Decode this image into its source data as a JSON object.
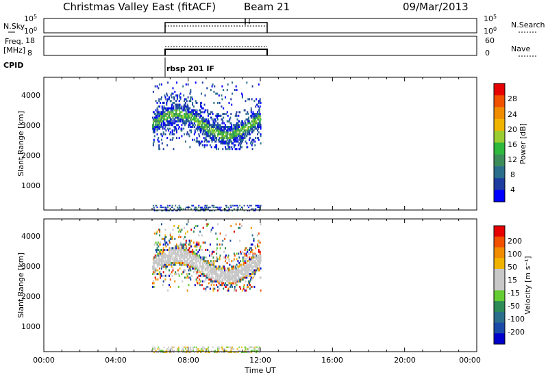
{
  "header": {
    "station": "Christmas Valley East (fitACF)",
    "beam": "Beam 21",
    "date": "09/Mar/2013"
  },
  "top_panels": {
    "nsky": {
      "label": "N.Sky",
      "ticks": [
        "10^5",
        "10^0"
      ],
      "right_ticks": [
        "10^5",
        "10^0"
      ],
      "right_label": "N.Search"
    },
    "freq": {
      "label_lines": [
        "Freq.",
        "[MHz]"
      ],
      "ticks": [
        "18",
        "8"
      ],
      "right_ticks": [
        "60",
        "0"
      ],
      "right_label": "Nave"
    },
    "cpid": {
      "label": "CPID",
      "value": "rbsp 201 IF"
    }
  },
  "power_panel": {
    "ylabel": "Slant Range [km]",
    "yticks": [
      "4000",
      "3000",
      "2000",
      "1000"
    ],
    "colorbar": {
      "label": "Power [dB]",
      "ticks": [
        "28",
        "24",
        "20",
        "16",
        "12",
        "8",
        "4"
      ]
    }
  },
  "velocity_panel": {
    "ylabel": "Slant Range [km]",
    "yticks": [
      "4000",
      "3000",
      "2000",
      "1000"
    ],
    "colorbar": {
      "label": "Velocity [m s⁻¹]",
      "ticks": [
        "200",
        "100",
        "50",
        "15",
        "-15",
        "-50",
        "-100",
        "-200"
      ]
    }
  },
  "x_axis": {
    "ticks": [
      "00:00",
      "04:00",
      "08:00",
      "12:00",
      "16:00",
      "20:00",
      "00:00"
    ],
    "label": "Time UT"
  },
  "colors": {
    "power_scale": [
      "#0000ff",
      "#1e3ca0",
      "#2a6e8c",
      "#3c8c5a",
      "#2eb83c",
      "#9acd32",
      "#f0b400",
      "#f08c00",
      "#f05000",
      "#e60000"
    ],
    "velocity_scale": [
      "#e60000",
      "#f05000",
      "#f08c00",
      "#f0b400",
      "#c8c8c8",
      "#c8c8c8",
      "#66cc33",
      "#2e8b57",
      "#2a6e8c",
      "#1a4aa8",
      "#0000cc"
    ]
  },
  "chart_data": [
    {
      "type": "heatmap",
      "panel": "power",
      "x": {
        "label": "Time UT",
        "range_hours": [
          0,
          24
        ],
        "data_hours": [
          6.0,
          12.0
        ]
      },
      "y": {
        "label": "Slant Range [km]",
        "range": [
          180,
          4500
        ]
      },
      "z": {
        "label": "Power [dB]",
        "range": [
          0,
          32
        ]
      },
      "features": [
        {
          "name": "far-range band",
          "time_hours": [
            6.0,
            12.0
          ],
          "range_km": [
            2300,
            4000
          ],
          "typical_db": 12
        },
        {
          "name": "near-range echoes",
          "time_hours": [
            6.0,
            12.0
          ],
          "range_km": [
            180,
            350
          ],
          "typical_db": 8
        }
      ]
    },
    {
      "type": "heatmap",
      "panel": "velocity",
      "x": {
        "label": "Time UT",
        "range_hours": [
          0,
          24
        ],
        "data_hours": [
          6.0,
          12.0
        ]
      },
      "y": {
        "label": "Slant Range [km]",
        "range": [
          180,
          4500
        ]
      },
      "z": {
        "label": "Velocity [m s-1]",
        "range": [
          -250,
          250
        ]
      },
      "features": [
        {
          "name": "far-range band",
          "time_hours": [
            6.0,
            12.0
          ],
          "range_km": [
            2300,
            4000
          ],
          "typical_velocity": -15
        },
        {
          "name": "near-range echoes",
          "time_hours": [
            6.0,
            12.0
          ],
          "range_km": [
            180,
            350
          ],
          "typical_velocity": -50
        }
      ]
    }
  ]
}
